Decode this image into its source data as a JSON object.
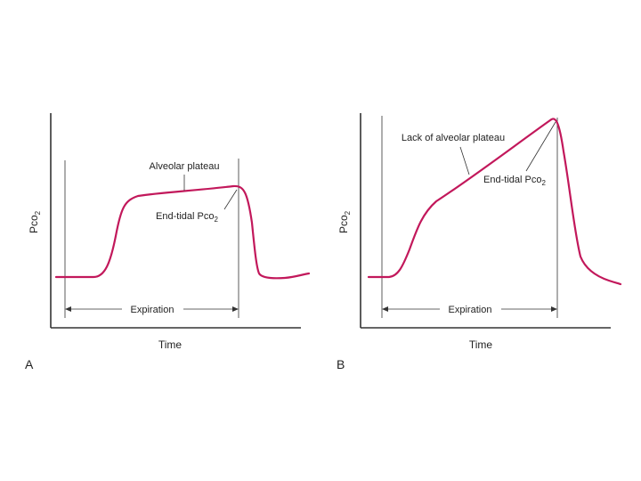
{
  "colors": {
    "curve": "#c2185b",
    "axis": "#333333",
    "text": "#222222"
  },
  "panels": [
    {
      "id": "A",
      "panel_label": "A",
      "y_axis_label": "Pco",
      "y_axis_sub": "2",
      "x_axis_label": "Time",
      "annotations": {
        "plateau": "Alveolar plateau",
        "end_tidal": "End-tidal Pco",
        "end_tidal_sub": "2"
      },
      "expiration_label": "Expiration"
    },
    {
      "id": "B",
      "panel_label": "B",
      "y_axis_label": "Pco",
      "y_axis_sub": "2",
      "x_axis_label": "Time",
      "annotations": {
        "plateau": "Lack of alveolar plateau",
        "end_tidal": "End-tidal Pco",
        "end_tidal_sub": "2"
      },
      "expiration_label": "Expiration"
    }
  ]
}
